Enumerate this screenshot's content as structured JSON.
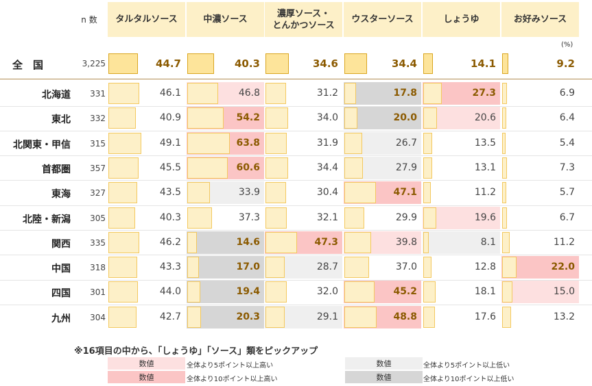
{
  "chart_data": {
    "type": "table",
    "n_label": "n 数",
    "unit": "(%)",
    "columns": [
      "タルタルソース",
      "中濃ソース",
      "濃厚ソース・\nとんかつソース",
      "ウスターソース",
      "しょうゆ",
      "お好みソース"
    ],
    "total": {
      "label": "全　国",
      "n": "3,225",
      "values": [
        44.7,
        40.3,
        34.6,
        34.4,
        14.1,
        9.2
      ]
    },
    "rows": [
      {
        "label": "北海道",
        "n": "331",
        "values": [
          46.1,
          46.8,
          31.2,
          17.8,
          27.3,
          6.9
        ],
        "hl": [
          "",
          "up5",
          "",
          "down10",
          "up10",
          ""
        ]
      },
      {
        "label": "東北",
        "n": "332",
        "values": [
          40.9,
          54.2,
          34.0,
          20.0,
          20.6,
          6.4
        ],
        "hl": [
          "",
          "up10",
          "",
          "down10",
          "up5",
          ""
        ]
      },
      {
        "label": "北関東・甲信",
        "n": "315",
        "values": [
          49.1,
          63.8,
          31.9,
          26.7,
          13.5,
          5.4
        ],
        "hl": [
          "",
          "up10",
          "",
          "down5",
          "",
          ""
        ]
      },
      {
        "label": "首都圏",
        "n": "357",
        "values": [
          45.5,
          60.6,
          34.4,
          27.9,
          13.1,
          7.3
        ],
        "hl": [
          "",
          "up10",
          "",
          "down5",
          "",
          ""
        ]
      },
      {
        "label": "東海",
        "n": "327",
        "values": [
          43.5,
          33.9,
          30.4,
          47.1,
          11.2,
          5.7
        ],
        "hl": [
          "",
          "down5",
          "",
          "up10",
          "",
          ""
        ]
      },
      {
        "label": "北陸・新潟",
        "n": "305",
        "values": [
          40.3,
          37.3,
          32.1,
          29.9,
          19.6,
          6.7
        ],
        "hl": [
          "",
          "",
          "",
          "",
          "up5",
          ""
        ]
      },
      {
        "label": "関西",
        "n": "335",
        "values": [
          46.2,
          14.6,
          47.3,
          39.8,
          8.1,
          11.2
        ],
        "hl": [
          "",
          "down10",
          "up10",
          "up5",
          "down5",
          ""
        ]
      },
      {
        "label": "中国",
        "n": "318",
        "values": [
          43.3,
          17.0,
          28.7,
          37.0,
          12.8,
          22.0
        ],
        "hl": [
          "",
          "down10",
          "down5",
          "",
          "",
          "up10"
        ]
      },
      {
        "label": "四国",
        "n": "301",
        "values": [
          44.0,
          19.4,
          32.0,
          45.2,
          18.1,
          15.0
        ],
        "hl": [
          "",
          "down10",
          "",
          "up10",
          "",
          "up5"
        ]
      },
      {
        "label": "九州",
        "n": "304",
        "values": [
          42.7,
          20.3,
          29.1,
          48.8,
          17.6,
          13.2
        ],
        "hl": [
          "",
          "down10",
          "down5",
          "up10",
          "",
          ""
        ]
      }
    ]
  },
  "legend": {
    "title": "※16項目の中から、「しょうゆ」「ソース」類をピックアップ",
    "items": [
      {
        "key": "up5",
        "box": "数値",
        "text": "全体より5ポイント以上高い"
      },
      {
        "key": "up10",
        "box": "数値",
        "text": "全体より10ポイント以上高い"
      },
      {
        "key": "down5",
        "box": "数値",
        "text": "全体より5ポイント以上低い"
      },
      {
        "key": "down10",
        "box": "数値",
        "text": "全体より10ポイント以上低い"
      }
    ]
  },
  "colors": {
    "header_bg": "#fdf0c8",
    "bar_total": "#fde49a",
    "bar_total_border": "#d9a520",
    "bar": "#fdf0c8",
    "bar_border": "#f3c85e",
    "up5": "#fde0e0",
    "up10": "#fbc5c5",
    "down5": "#efefef",
    "down10": "#d6d6d6",
    "bold_text": "#8b5a00"
  }
}
